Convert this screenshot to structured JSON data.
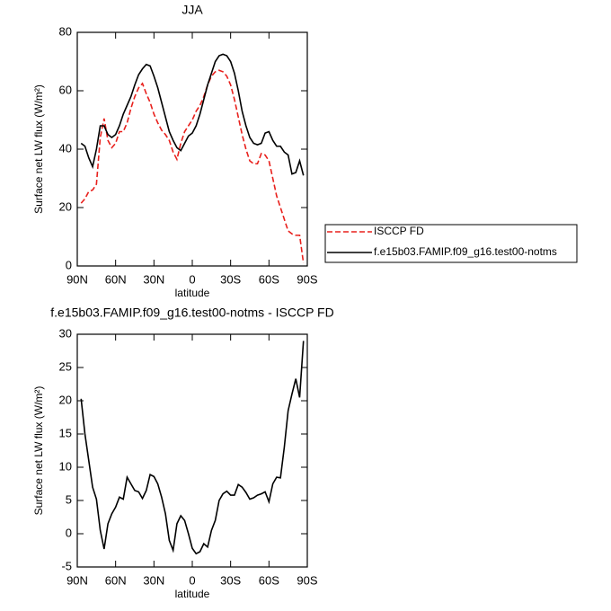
{
  "chart_data": [
    {
      "type": "line",
      "title": "JJA",
      "x_label": "latitude",
      "y_label": "Surface net LW flux (W/m²)",
      "x": [
        87,
        84,
        81,
        78,
        75,
        72,
        69,
        66,
        63,
        60,
        57,
        54,
        51,
        48,
        45,
        42,
        39,
        36,
        33,
        30,
        27,
        24,
        21,
        18,
        15,
        12,
        9,
        6,
        3,
        0,
        -3,
        -6,
        -9,
        -12,
        -15,
        -18,
        -21,
        -24,
        -27,
        -30,
        -33,
        -36,
        -39,
        -42,
        -45,
        -48,
        -51,
        -54,
        -57,
        -60,
        -63,
        -66,
        -69,
        -72,
        -75,
        -78,
        -81,
        -84,
        -87
      ],
      "xlim": [
        90,
        -90
      ],
      "xticks": [
        {
          "value": 90,
          "label": "90N"
        },
        {
          "value": 60,
          "label": "60N"
        },
        {
          "value": 30,
          "label": "30N"
        },
        0,
        {
          "value": -30,
          "label": "30S"
        },
        {
          "value": -60,
          "label": "60S"
        },
        {
          "value": -90,
          "label": "90S"
        }
      ],
      "ylim": [
        0,
        80
      ],
      "yticks": [
        0,
        20,
        40,
        60,
        80
      ],
      "legend": "outside-right",
      "series": [
        {
          "name": "ISCCP FD",
          "color": "#e8201c",
          "dash": true,
          "values": [
            21.5,
            23,
            25.5,
            26,
            28,
            44,
            50.5,
            43,
            40.5,
            42,
            46,
            46,
            49,
            54,
            58,
            61,
            62.5,
            59,
            56,
            52,
            49,
            46.5,
            45,
            43,
            39,
            36.5,
            42,
            46,
            48,
            50,
            53,
            55,
            58,
            62,
            65,
            66.5,
            67,
            66.5,
            65,
            62,
            57,
            51,
            45,
            40,
            36,
            35,
            35,
            38.5,
            38,
            36,
            30,
            24,
            20,
            16,
            12,
            11,
            10.5,
            10.5,
            1
          ]
        },
        {
          "name": "f.e15b03.FAMIP.f09_g16.test00-notms",
          "color": "#000000",
          "dash": false,
          "values": [
            42,
            41,
            37,
            34,
            40,
            48,
            48,
            45,
            44,
            45,
            48,
            52,
            55,
            58,
            62,
            65.5,
            67.5,
            69,
            68.5,
            65,
            61,
            56,
            51,
            46,
            43,
            40.5,
            39.5,
            42,
            44.5,
            45.5,
            48,
            52,
            57,
            62,
            66,
            70,
            72,
            72.5,
            72,
            70,
            66,
            60,
            53,
            48,
            44,
            42,
            41.5,
            42,
            45.5,
            46,
            43,
            41,
            41,
            39,
            38,
            31.5,
            32,
            36,
            31
          ]
        }
      ]
    },
    {
      "type": "line",
      "title": "f.e15b03.FAMIP.f09_g16.test00-notms - ISCCP FD",
      "x_label": "latitude",
      "y_label": "Surface net LW flux (W/m²)",
      "x": [
        87,
        84,
        81,
        78,
        75,
        72,
        69,
        66,
        63,
        60,
        57,
        54,
        51,
        48,
        45,
        42,
        39,
        36,
        33,
        30,
        27,
        24,
        21,
        18,
        15,
        12,
        9,
        6,
        3,
        0,
        -3,
        -6,
        -9,
        -12,
        -15,
        -18,
        -21,
        -24,
        -27,
        -30,
        -33,
        -36,
        -39,
        -42,
        -45,
        -48,
        -51,
        -54,
        -57,
        -60,
        -63,
        -66,
        -69,
        -72,
        -75,
        -78,
        -81,
        -84,
        -87
      ],
      "xlim": [
        90,
        -90
      ],
      "xticks": [
        {
          "value": 90,
          "label": "90N"
        },
        {
          "value": 60,
          "label": "60N"
        },
        {
          "value": 30,
          "label": "30N"
        },
        0,
        {
          "value": -30,
          "label": "30S"
        },
        {
          "value": -60,
          "label": "60S"
        },
        {
          "value": -90,
          "label": "90S"
        }
      ],
      "ylim": [
        -5,
        30
      ],
      "yticks": [
        -5,
        0,
        5,
        10,
        15,
        20,
        25,
        30
      ],
      "series": [
        {
          "color": "#000000",
          "dash": false,
          "values": [
            20.3,
            15,
            11,
            7,
            5.2,
            0.5,
            -2.3,
            1.5,
            3,
            4,
            5.5,
            5.2,
            8.5,
            7.5,
            6.5,
            6.3,
            5.3,
            6.5,
            8.9,
            8.6,
            7.5,
            5.5,
            3,
            -1,
            -2.5,
            1.5,
            2.7,
            2,
            0,
            -2.2,
            -3,
            -2.7,
            -1.5,
            -2,
            0.5,
            2,
            5,
            6,
            6.4,
            5.8,
            5.8,
            7.4,
            7,
            6.2,
            5.2,
            5.4,
            5.8,
            6,
            6.3,
            4.8,
            7.5,
            8.5,
            8.4,
            13,
            18.5,
            21,
            23.3,
            20.5,
            29
          ]
        }
      ]
    }
  ]
}
